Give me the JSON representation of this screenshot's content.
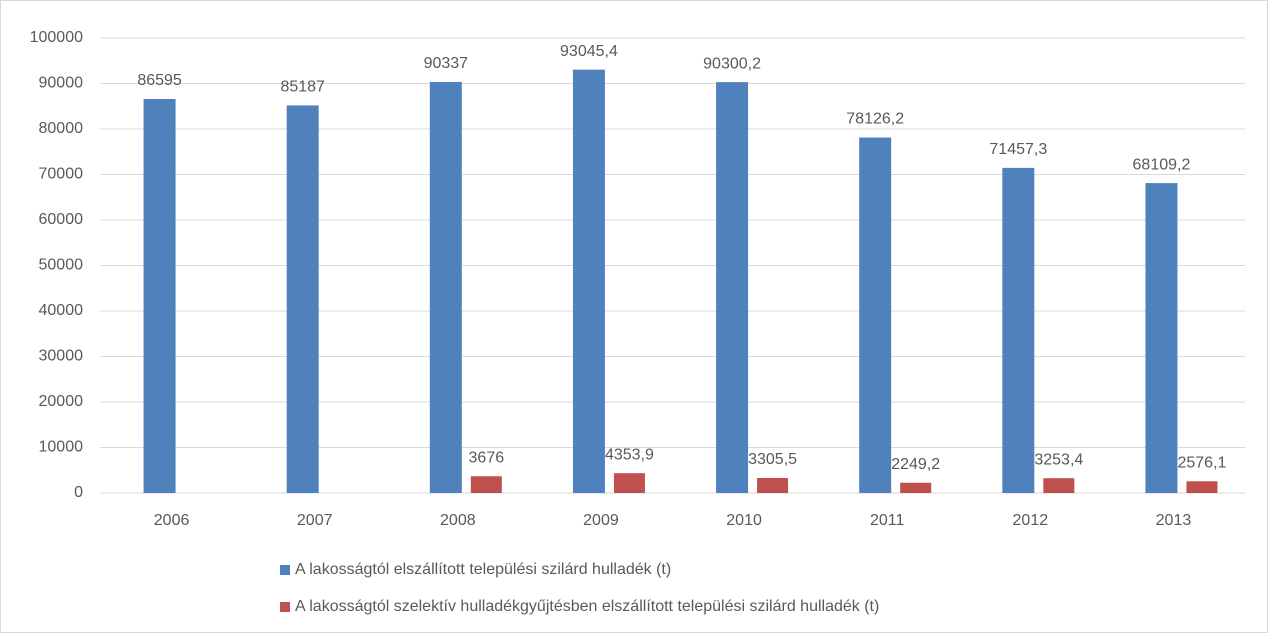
{
  "chart_data": {
    "type": "bar",
    "categories": [
      "2006",
      "2007",
      "2008",
      "2009",
      "2010",
      "2011",
      "2012",
      "2013"
    ],
    "series": [
      {
        "name": "A lakosságtól elszállított települési szilárd hulladék (t)",
        "color": "#4f81bd",
        "values": [
          86595,
          85187,
          90337,
          93045.4,
          90300.2,
          78126.2,
          71457.3,
          68109.2
        ],
        "value_labels": [
          "86595",
          "85187",
          "90337",
          "93045,4",
          "90300,2",
          "78126,2",
          "71457,3",
          "68109,2"
        ]
      },
      {
        "name": "A lakosságtól szelektív hulladékgyűjtésben elszállított települési szilárd hulladék (t)",
        "color": "#c0504d",
        "values": [
          null,
          null,
          3676,
          4353.9,
          3305.5,
          2249.2,
          3253.4,
          2576.1
        ],
        "value_labels": [
          null,
          null,
          "3676",
          "4353,9",
          "3305,5",
          "2249,2",
          "3253,4",
          "2576,1"
        ]
      }
    ],
    "ylim": [
      0,
      100000
    ],
    "yticks": [
      0,
      10000,
      20000,
      30000,
      40000,
      50000,
      60000,
      70000,
      80000,
      90000,
      100000
    ],
    "grid": true,
    "legend": "bottom"
  }
}
